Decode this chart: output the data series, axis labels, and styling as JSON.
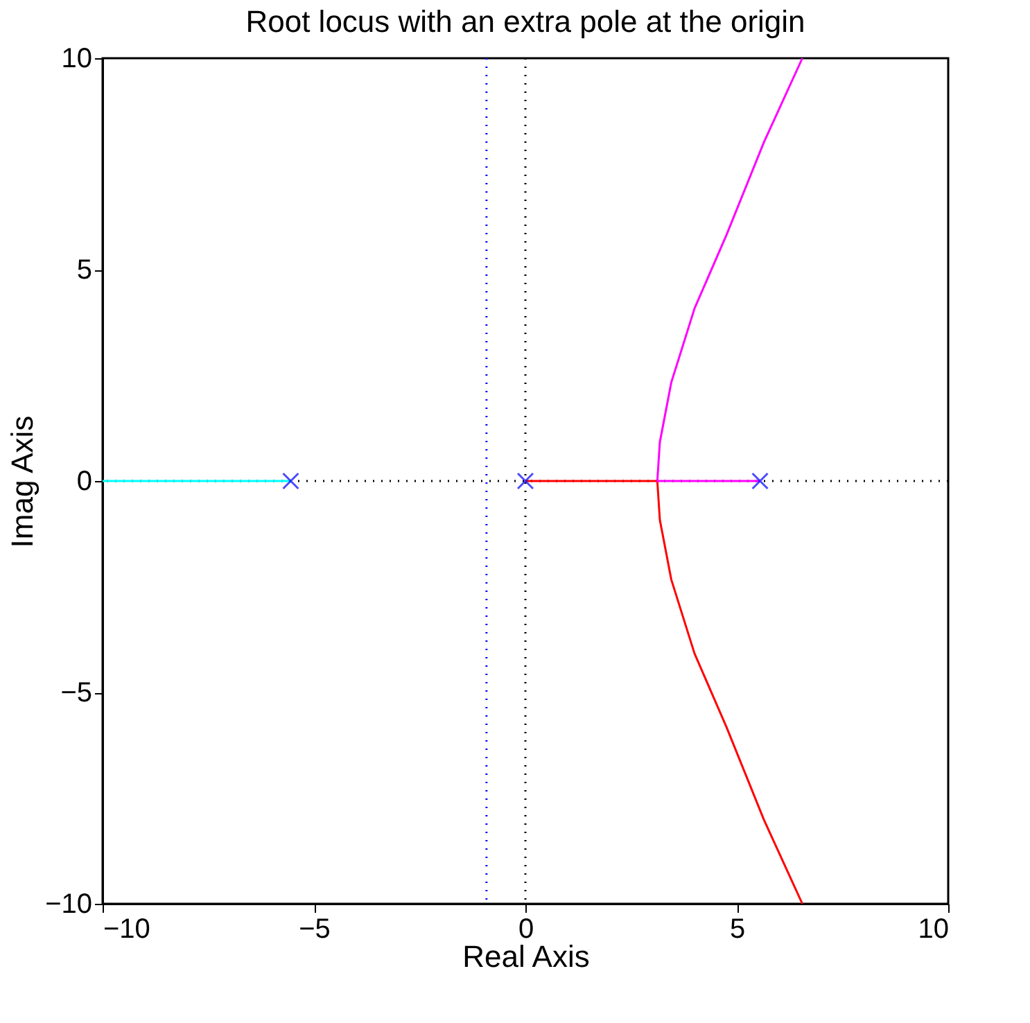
{
  "chart_data": {
    "type": "line",
    "title": "Root locus with an extra pole at the origin",
    "xlabel": "Real Axis",
    "ylabel": "Imag Axis",
    "xlim": [
      -10,
      10
    ],
    "ylim": [
      -10,
      10
    ],
    "xticks": [
      -10,
      -5,
      0,
      5,
      10
    ],
    "yticks": [
      -10,
      -5,
      0,
      5,
      10
    ],
    "grid": false,
    "series": [
      {
        "color": "#00ffff",
        "x": [
          -10,
          -5.55
        ],
        "values": [
          0,
          0
        ]
      },
      {
        "color": "#ff0000",
        "x": [
          0,
          3.12,
          3.18,
          3.45,
          4.0,
          4.76,
          5.64,
          6.55
        ],
        "values": [
          0,
          0,
          -0.92,
          -2.33,
          -4.08,
          -5.83,
          -8.01,
          -10
        ]
      },
      {
        "color": "#ff00ff",
        "x": [
          5.55,
          3.12,
          3.18,
          3.45,
          4.0,
          4.76,
          5.64,
          6.55
        ],
        "values": [
          0,
          0,
          0.92,
          2.33,
          4.08,
          5.83,
          8.01,
          10
        ]
      },
      {
        "type": "scatter",
        "marker": "cross",
        "color": "#0000ff",
        "x": [
          -5.55,
          0,
          5.55
        ],
        "values": [
          0,
          0,
          0
        ]
      }
    ],
    "ref_lines": [
      {
        "axis": "y",
        "value": 0,
        "color": "#000000",
        "line_style": "dotted"
      },
      {
        "axis": "x",
        "value": 0,
        "color": "#000000",
        "line_style": "dotted"
      },
      {
        "axis": "x",
        "value": -0.92,
        "color": "#0000ff",
        "line_style": "dotted"
      }
    ]
  }
}
